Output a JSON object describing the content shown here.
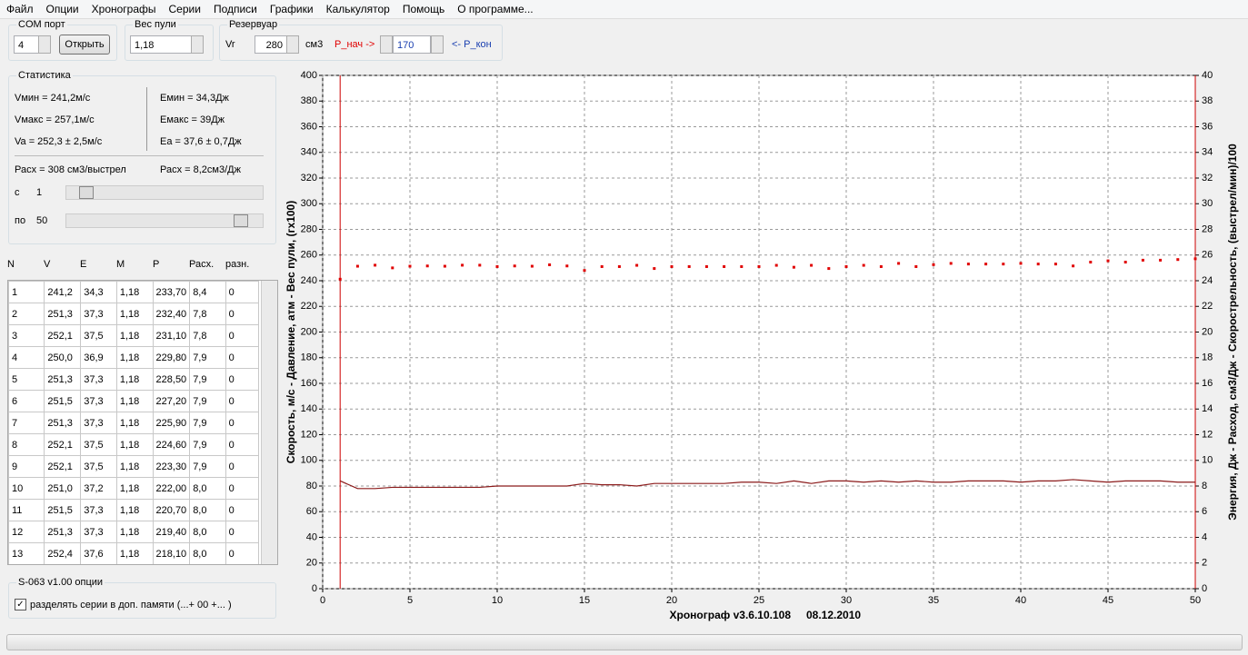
{
  "menu": [
    "Файл",
    "Опции",
    "Хронографы",
    "Серии",
    "Подписи",
    "Графики",
    "Калькулятор",
    "Помощь",
    "О программе..."
  ],
  "com_port": {
    "title": "COM порт",
    "value": "4",
    "button": "Открыть"
  },
  "bullet_weight": {
    "title": "Вес пули",
    "value": "1,18"
  },
  "reservoir": {
    "title": "Резервуар",
    "vr_label": "Vr",
    "volume": "280",
    "unit": "см3",
    "p_start_label": "P_нач ->",
    "p_value": "170",
    "p_end_label": "<- P_кон"
  },
  "statistics": {
    "title": "Статистика",
    "v_min": "Vмин = 241,2м/с",
    "v_max": "Vмакс = 257,1м/с",
    "v_avg": "Va = 252,3 ± 2,5м/с",
    "e_min": "Емин = 34,3Дж",
    "e_max": "Емакс = 39Дж",
    "e_avg": "Ea = 37,6 ± 0,7Дж",
    "consumption_shot": "Расх = 308 см3/выстрел",
    "consumption_energy": "Расх = 8,2см3/Дж",
    "from_label": "с",
    "to_label": "по"
  },
  "table": {
    "headers": [
      "N",
      "V",
      "E",
      "M",
      "P",
      "Расх.",
      "разн."
    ],
    "rows": [
      [
        "1",
        "241,2",
        "34,3",
        "1,18",
        "233,70",
        "8,4",
        "0"
      ],
      [
        "2",
        "251,3",
        "37,3",
        "1,18",
        "232,40",
        "7,8",
        "0"
      ],
      [
        "3",
        "252,1",
        "37,5",
        "1,18",
        "231,10",
        "7,8",
        "0"
      ],
      [
        "4",
        "250,0",
        "36,9",
        "1,18",
        "229,80",
        "7,9",
        "0"
      ],
      [
        "5",
        "251,3",
        "37,3",
        "1,18",
        "228,50",
        "7,9",
        "0"
      ],
      [
        "6",
        "251,5",
        "37,3",
        "1,18",
        "227,20",
        "7,9",
        "0"
      ],
      [
        "7",
        "251,3",
        "37,3",
        "1,18",
        "225,90",
        "7,9",
        "0"
      ],
      [
        "8",
        "252,1",
        "37,5",
        "1,18",
        "224,60",
        "7,9",
        "0"
      ],
      [
        "9",
        "252,1",
        "37,5",
        "1,18",
        "223,30",
        "7,9",
        "0"
      ],
      [
        "10",
        "251,0",
        "37,2",
        "1,18",
        "222,00",
        "8,0",
        "0"
      ],
      [
        "11",
        "251,5",
        "37,3",
        "1,18",
        "220,70",
        "8,0",
        "0"
      ],
      [
        "12",
        "251,3",
        "37,3",
        "1,18",
        "219,40",
        "8,0",
        "0"
      ],
      [
        "13",
        "252,4",
        "37,6",
        "1,18",
        "218,10",
        "8,0",
        "0"
      ]
    ]
  },
  "options": {
    "title": "S-063 v1.00 опции",
    "checkbox": "разделять серии в доп. памяти (...+ 00 +... )"
  },
  "chart_data": {
    "type": "combo",
    "ylabel": "Скорость, м/с  - Давление, атм - Вес пули, (гх100)",
    "y2label": "Энергия, Дж  -  Расход, см3/Дж - Скорострельность, (выстрел/мин)/100",
    "xlabel": "Хронограф v3.6.10.108",
    "date": "08.12.2010",
    "x": [
      1,
      2,
      3,
      4,
      5,
      6,
      7,
      8,
      9,
      10,
      11,
      12,
      13,
      14,
      15,
      16,
      17,
      18,
      19,
      20,
      21,
      22,
      23,
      24,
      25,
      26,
      27,
      28,
      29,
      30,
      31,
      32,
      33,
      34,
      35,
      36,
      37,
      38,
      39,
      40,
      41,
      42,
      43,
      44,
      45,
      46,
      47,
      48,
      49,
      50
    ],
    "series": [
      {
        "type": "scatter",
        "color": "#e00000",
        "values": [
          241.2,
          251.3,
          252.1,
          250.0,
          251.3,
          251.5,
          251.3,
          252.1,
          252.1,
          251.0,
          251.5,
          251.3,
          252.4,
          251.5,
          248,
          251,
          251,
          252,
          249.5,
          251,
          251,
          251,
          251,
          251,
          251,
          252,
          250.5,
          252,
          249.5,
          251,
          252,
          251,
          253.5,
          251,
          252.5,
          253.5,
          253,
          253,
          253,
          253.5,
          253,
          253,
          251.5,
          254.5,
          255.5,
          254.5,
          256,
          256,
          256.5,
          257.1
        ]
      },
      {
        "type": "line",
        "color": "#8b1a1a",
        "axis": "y2",
        "values": [
          8.4,
          7.8,
          7.8,
          7.9,
          7.9,
          7.9,
          7.9,
          7.9,
          7.9,
          8.0,
          8.0,
          8.0,
          8.0,
          8.0,
          8.2,
          8.1,
          8.1,
          8.0,
          8.2,
          8.2,
          8.2,
          8.2,
          8.2,
          8.3,
          8.3,
          8.2,
          8.4,
          8.2,
          8.4,
          8.4,
          8.3,
          8.4,
          8.3,
          8.4,
          8.3,
          8.3,
          8.4,
          8.4,
          8.4,
          8.3,
          8.4,
          8.4,
          8.5,
          8.4,
          8.3,
          8.4,
          8.4,
          8.4,
          8.3,
          8.3
        ]
      }
    ],
    "markers": [
      1,
      50
    ],
    "marker_color": "#cc0000",
    "xlim": [
      0,
      50
    ],
    "xticks": [
      0,
      5,
      10,
      15,
      20,
      25,
      30,
      35,
      40,
      45,
      50
    ],
    "ylim": [
      0,
      400
    ],
    "yticks": [
      0,
      20,
      40,
      60,
      80,
      100,
      120,
      140,
      160,
      180,
      200,
      220,
      240,
      260,
      280,
      300,
      320,
      340,
      360,
      380,
      400
    ],
    "y2lim": [
      0,
      40
    ],
    "y2ticks": [
      0,
      2,
      4,
      6,
      8,
      10,
      12,
      14,
      16,
      18,
      20,
      22,
      24,
      26,
      28,
      30,
      32,
      34,
      36,
      38,
      40
    ],
    "grid": true
  }
}
